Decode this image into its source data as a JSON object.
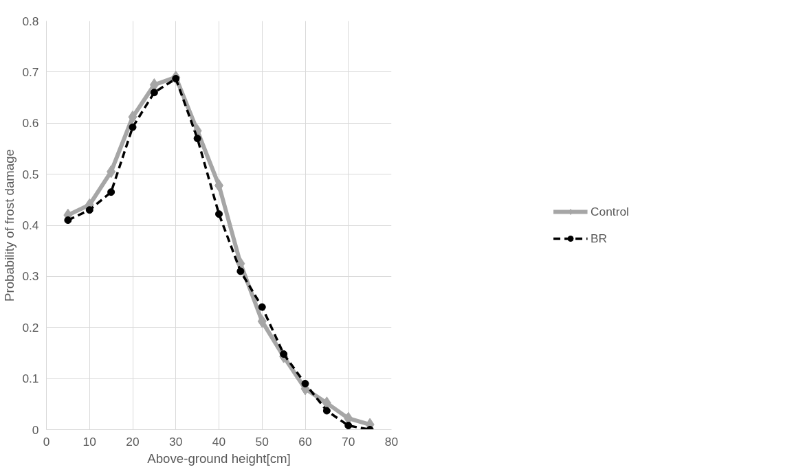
{
  "chart_data": {
    "type": "line",
    "xlabel": "Above-ground height[cm]",
    "ylabel": "Probability of frost damage",
    "x": [
      5,
      10,
      15,
      20,
      25,
      30,
      35,
      40,
      45,
      50,
      55,
      60,
      65,
      70,
      75
    ],
    "series": [
      {
        "name": "Control",
        "color": "#a6a6a6",
        "marker": "diamond",
        "line_style": "solid",
        "values": [
          0.42,
          0.44,
          0.505,
          0.612,
          0.675,
          0.69,
          0.585,
          0.478,
          0.325,
          0.212,
          0.143,
          0.08,
          0.052,
          0.022,
          0.01
        ]
      },
      {
        "name": "BR",
        "color": "#000000",
        "marker": "circle",
        "line_style": "dashed",
        "values": [
          0.41,
          0.43,
          0.465,
          0.592,
          0.66,
          0.687,
          0.57,
          0.422,
          0.31,
          0.24,
          0.148,
          0.09,
          0.037,
          0.008,
          0.0
        ]
      }
    ],
    "xlim": [
      0,
      80
    ],
    "xticks": [
      0,
      10,
      20,
      30,
      40,
      50,
      60,
      70,
      80
    ],
    "ylim": [
      0,
      0.8
    ],
    "yticks": [
      0,
      0.1,
      0.2,
      0.3,
      0.4,
      0.5,
      0.6,
      0.7,
      0.8
    ],
    "grid": true,
    "legend": "right"
  }
}
